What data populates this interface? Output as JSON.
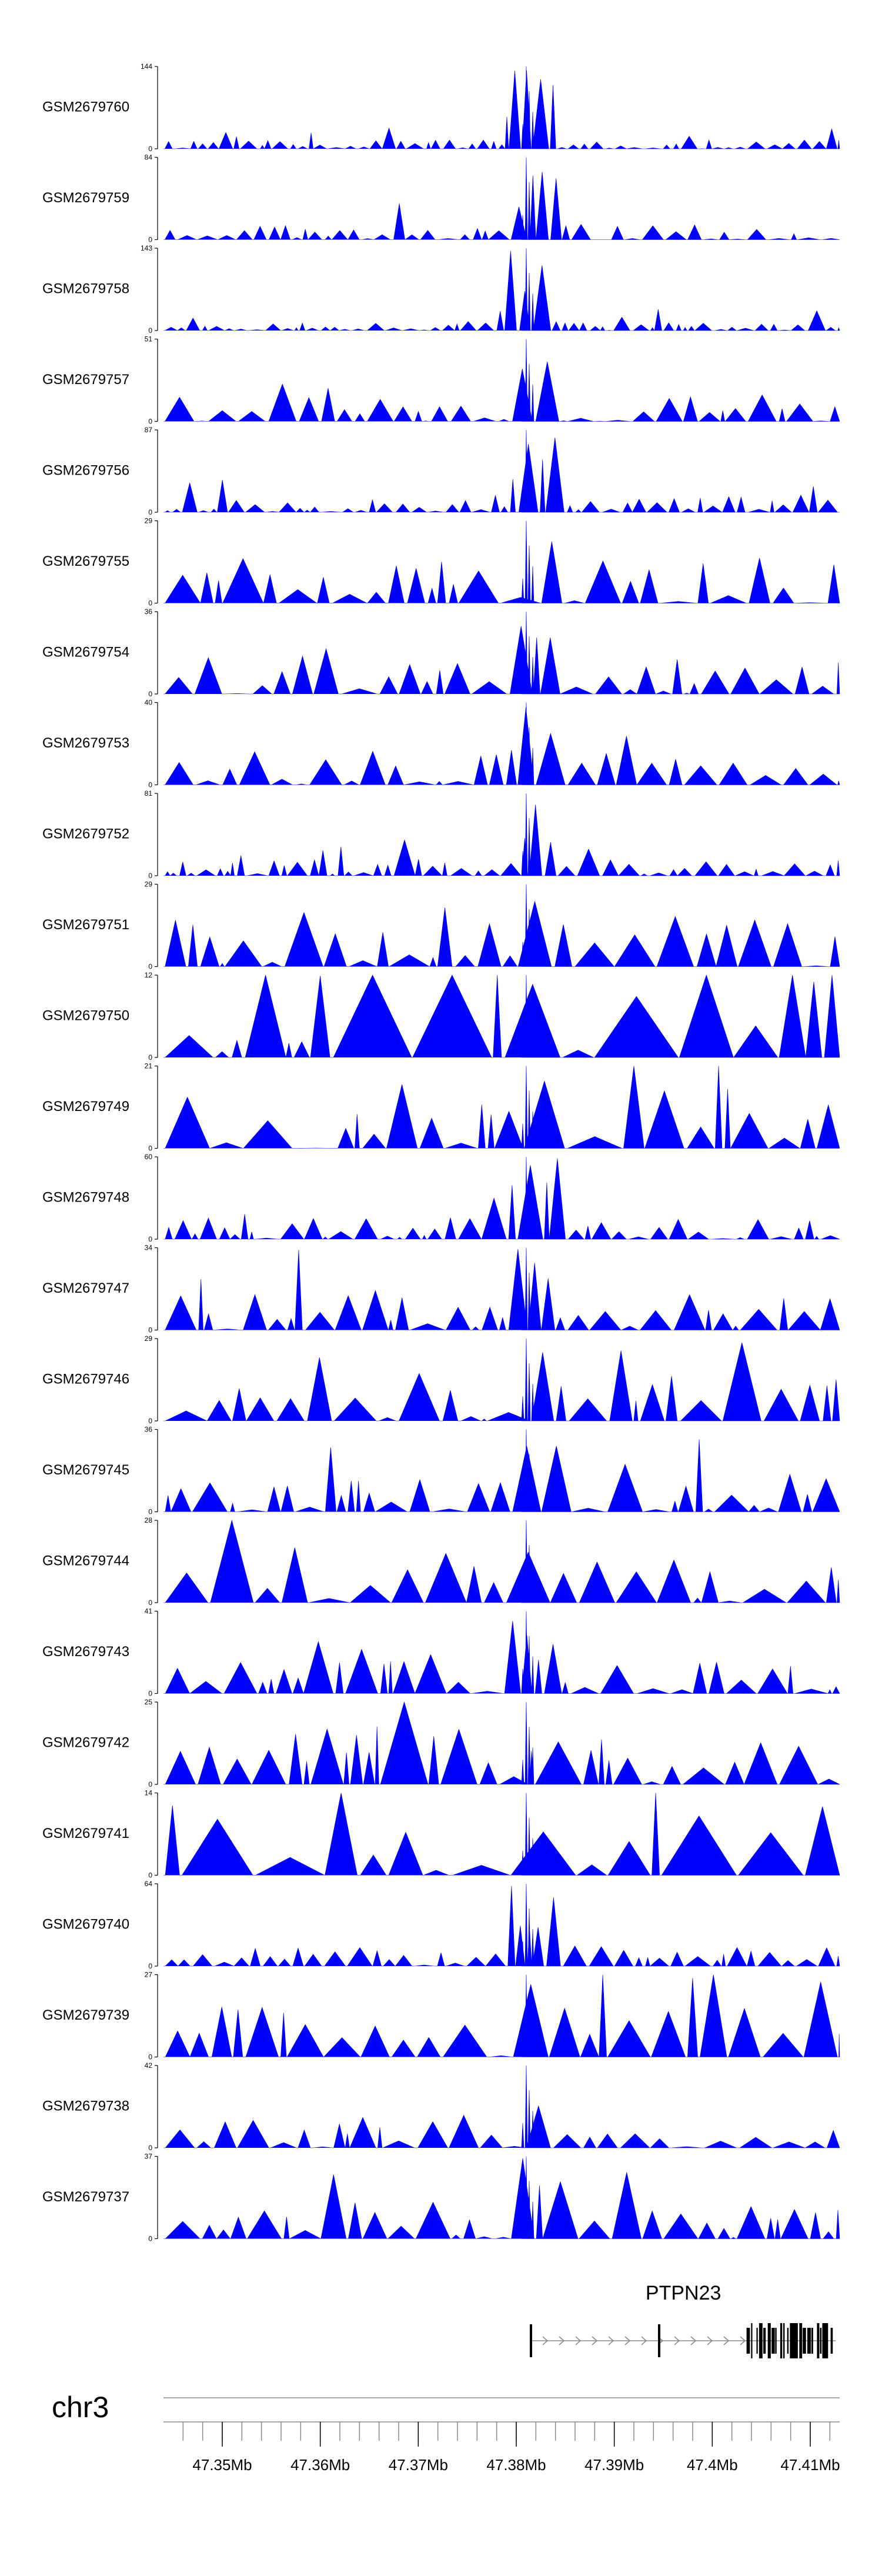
{
  "chart_data": {
    "type": "area",
    "title": "",
    "xlabel": "",
    "chromosome": "chr3",
    "xlim_mb": [
      47.344,
      47.413
    ],
    "x_ticks": [
      {
        "value": 47.35,
        "label": "47.35Mb"
      },
      {
        "value": 47.36,
        "label": "47.36Mb"
      },
      {
        "value": 47.37,
        "label": "47.37Mb"
      },
      {
        "value": 47.38,
        "label": "47.38Mb"
      },
      {
        "value": 47.39,
        "label": "47.39Mb"
      },
      {
        "value": 47.4,
        "label": "47.4Mb"
      },
      {
        "value": 47.41,
        "label": "47.41Mb"
      }
    ],
    "tracks": [
      {
        "name": "GSM2679760",
        "ymax": 144,
        "ymax_label": "144",
        "ymin_label": "0",
        "seed": 11
      },
      {
        "name": "GSM2679759",
        "ymax": 84,
        "ymax_label": "84",
        "ymin_label": "0",
        "seed": 23
      },
      {
        "name": "GSM2679758",
        "ymax": 143,
        "ymax_label": "143",
        "ymin_label": "0",
        "seed": 37
      },
      {
        "name": "GSM2679757",
        "ymax": 51,
        "ymax_label": "51",
        "ymin_label": "0",
        "seed": 41
      },
      {
        "name": "GSM2679756",
        "ymax": 87,
        "ymax_label": "87",
        "ymin_label": "0",
        "seed": 53
      },
      {
        "name": "GSM2679755",
        "ymax": 29,
        "ymax_label": "29",
        "ymin_label": "0",
        "seed": 61
      },
      {
        "name": "GSM2679754",
        "ymax": 36,
        "ymax_label": "36",
        "ymin_label": "0",
        "seed": 71
      },
      {
        "name": "GSM2679753",
        "ymax": 40,
        "ymax_label": "40",
        "ymin_label": "0",
        "seed": 83
      },
      {
        "name": "GSM2679752",
        "ymax": 81,
        "ymax_label": "81",
        "ymin_label": "0",
        "seed": 97
      },
      {
        "name": "GSM2679751",
        "ymax": 29,
        "ymax_label": "29",
        "ymin_label": "0",
        "seed": 101
      },
      {
        "name": "GSM2679750",
        "ymax": 12,
        "ymax_label": "12",
        "ymin_label": "0",
        "seed": 113
      },
      {
        "name": "GSM2679749",
        "ymax": 21,
        "ymax_label": "21",
        "ymin_label": "0",
        "seed": 127
      },
      {
        "name": "GSM2679748",
        "ymax": 60,
        "ymax_label": "60",
        "ymin_label": "0",
        "seed": 131
      },
      {
        "name": "GSM2679747",
        "ymax": 34,
        "ymax_label": "34",
        "ymin_label": "0",
        "seed": 149
      },
      {
        "name": "GSM2679746",
        "ymax": 29,
        "ymax_label": "29",
        "ymin_label": "0",
        "seed": 151
      },
      {
        "name": "GSM2679745",
        "ymax": 36,
        "ymax_label": "36",
        "ymin_label": "0",
        "seed": 163
      },
      {
        "name": "GSM2679744",
        "ymax": 28,
        "ymax_label": "28",
        "ymin_label": "0",
        "seed": 173
      },
      {
        "name": "GSM2679743",
        "ymax": 41,
        "ymax_label": "41",
        "ymin_label": "0",
        "seed": 181
      },
      {
        "name": "GSM2679742",
        "ymax": 25,
        "ymax_label": "25",
        "ymin_label": "0",
        "seed": 191
      },
      {
        "name": "GSM2679741",
        "ymax": 14,
        "ymax_label": "14",
        "ymin_label": "0",
        "seed": 197
      },
      {
        "name": "GSM2679740",
        "ymax": 64,
        "ymax_label": "64",
        "ymin_label": "0",
        "seed": 211
      },
      {
        "name": "GSM2679739",
        "ymax": 27,
        "ymax_label": "27",
        "ymin_label": "0",
        "seed": 223
      },
      {
        "name": "GSM2679738",
        "ymax": 42,
        "ymax_label": "42",
        "ymin_label": "0",
        "seed": 227
      },
      {
        "name": "GSM2679737",
        "ymax": 37,
        "ymax_label": "37",
        "ymin_label": "0",
        "seed": 239
      }
    ],
    "gene": {
      "name": "PTPN23",
      "start_mb": 47.3815,
      "end_mb": 47.4126,
      "strand": "+",
      "exon_block_start_mb": 47.4035
    },
    "colors": {
      "signal": "#0000ff",
      "axis": "#000000",
      "gene": "#000000",
      "intron": "#888888",
      "ruler": "#888888"
    }
  }
}
